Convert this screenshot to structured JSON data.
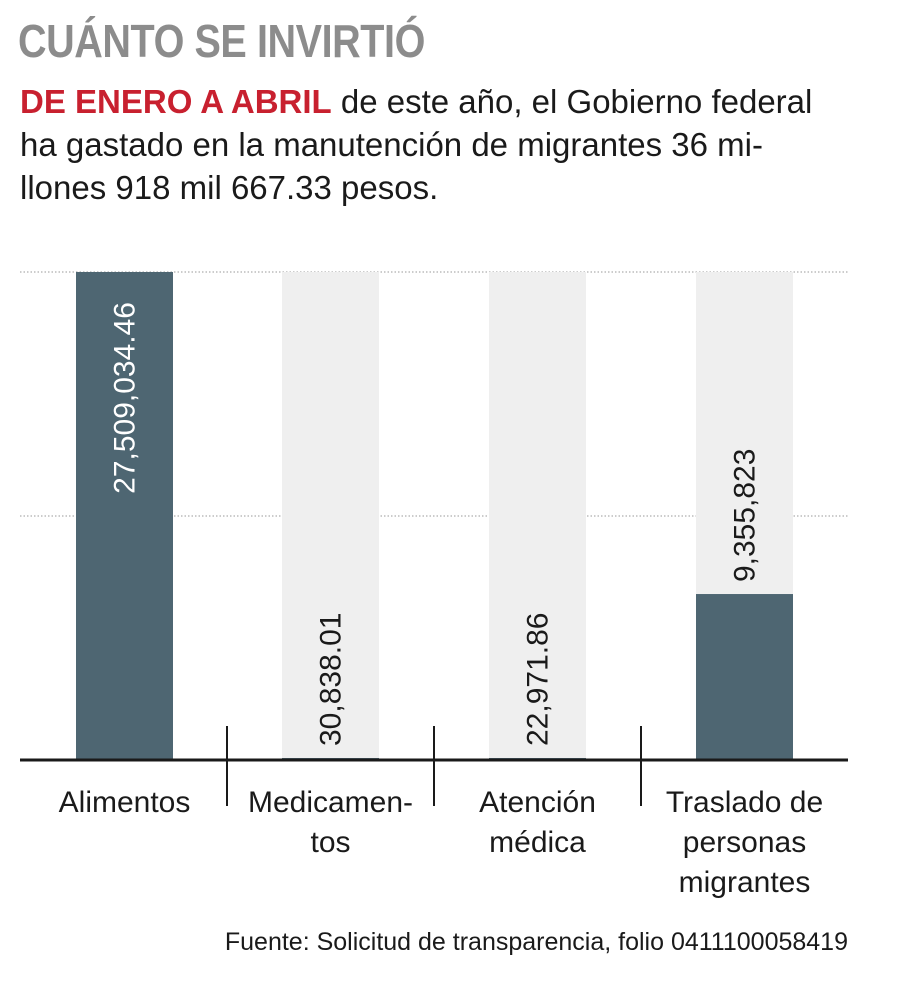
{
  "header": {
    "title": "CUÁNTO SE INVIRTIÓ",
    "subtitle_lead": "DE ENERO A ABRIL",
    "subtitle_line1": " de este año, el Gobierno federal",
    "subtitle_line2": "ha gastado en la manutención de migrantes 36 mi-",
    "subtitle_line3": "llones 918 mil 667.33 pesos."
  },
  "footer": {
    "source": "Fuente: Solicitud de transparencia, folio 0411100058419"
  },
  "colors": {
    "bar": "#4e6672",
    "track": "#efefef",
    "axis": "#1a1a1a",
    "grid": "#9a9a9a",
    "accent": "#c8202f",
    "title": "#8c8c8c"
  },
  "chart_data": {
    "type": "bar",
    "title": "",
    "xlabel": "",
    "ylabel": "",
    "ylim": [
      0,
      27509034.46
    ],
    "grid": true,
    "categories": [
      [
        "Alimentos"
      ],
      [
        "Medicamen-",
        "tos"
      ],
      [
        "Atención",
        "médica"
      ],
      [
        "Traslado de",
        "personas",
        "migrantes"
      ]
    ],
    "values": [
      27509034.46,
      30838.01,
      22971.86,
      9355823
    ],
    "value_labels": [
      "27,509,034.46",
      "30,838.01",
      "22,971.86",
      "9,355,823"
    ]
  }
}
